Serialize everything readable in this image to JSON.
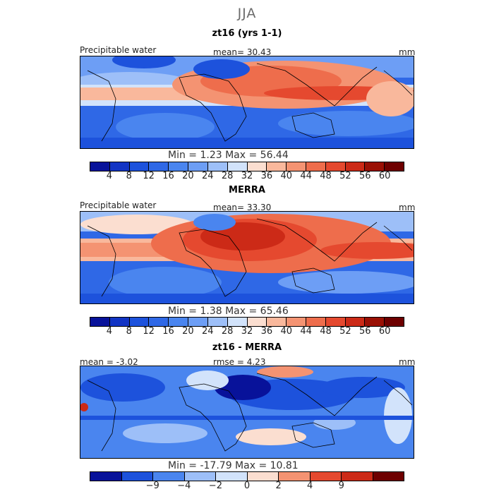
{
  "figure": {
    "title": "JJA"
  },
  "panels": [
    {
      "title": "zt16 (yrs 1-1)",
      "left_label": "Precipitable water",
      "center_label": "mean=   30.43",
      "right_label": "",
      "units": "mm",
      "range_text": "Min =    1.23  Max =   56.44",
      "ticks": [
        "4",
        "8",
        "12",
        "16",
        "20",
        "24",
        "28",
        "32",
        "36",
        "40",
        "44",
        "48",
        "52",
        "56",
        "60"
      ]
    },
    {
      "title": "MERRA",
      "left_label": "Precipitable water",
      "center_label": "mean=   33.30",
      "right_label": "",
      "units": "mm",
      "range_text": "Min =    1.38  Max =   65.46",
      "ticks": [
        "4",
        "8",
        "12",
        "16",
        "20",
        "24",
        "28",
        "32",
        "36",
        "40",
        "44",
        "48",
        "52",
        "56",
        "60"
      ]
    },
    {
      "title": "zt16 - MERRA",
      "left_label": "mean =   -3.02",
      "center_label": "rmse =    4.23",
      "right_label": "",
      "units": "mm",
      "range_text": "Min =  -17.79  Max =   10.81",
      "ticks": [
        "−9",
        "−4",
        "−2",
        "0",
        "2",
        "4",
        "9"
      ]
    }
  ],
  "colors": {
    "seq": [
      "#08129a",
      "#1234c4",
      "#1d52dc",
      "#2f68e6",
      "#4a85ef",
      "#6d9ef5",
      "#9dbff8",
      "#d2e3fb",
      "#fbded0",
      "#f9b89c",
      "#f49372",
      "#ee6d4c",
      "#e5492f",
      "#cc2a17",
      "#9a1005",
      "#6e0000"
    ],
    "div": [
      "#08129a",
      "#1d52dc",
      "#4a85ef",
      "#9dbff8",
      "#d2e3fb",
      "#fbded0",
      "#f49372",
      "#e5492f",
      "#cc2a17",
      "#6e0000"
    ]
  },
  "chart_data": [
    {
      "type": "heatmap",
      "title": "zt16 (yrs 1-1)",
      "variable": "Precipitable water",
      "units": "mm",
      "mean": 30.43,
      "min": 1.23,
      "max": 56.44,
      "colorbar_levels": [
        4,
        8,
        12,
        16,
        20,
        24,
        28,
        32,
        36,
        40,
        44,
        48,
        52,
        56,
        60
      ]
    },
    {
      "type": "heatmap",
      "title": "MERRA",
      "variable": "Precipitable water",
      "units": "mm",
      "mean": 33.3,
      "min": 1.38,
      "max": 65.46,
      "colorbar_levels": [
        4,
        8,
        12,
        16,
        20,
        24,
        28,
        32,
        36,
        40,
        44,
        48,
        52,
        56,
        60
      ]
    },
    {
      "type": "heatmap",
      "title": "zt16 - MERRA",
      "units": "mm",
      "mean": -3.02,
      "rmse": 4.23,
      "min": -17.79,
      "max": 10.81,
      "colorbar_levels": [
        -9,
        -4,
        -2,
        0,
        2,
        4,
        9
      ]
    }
  ]
}
